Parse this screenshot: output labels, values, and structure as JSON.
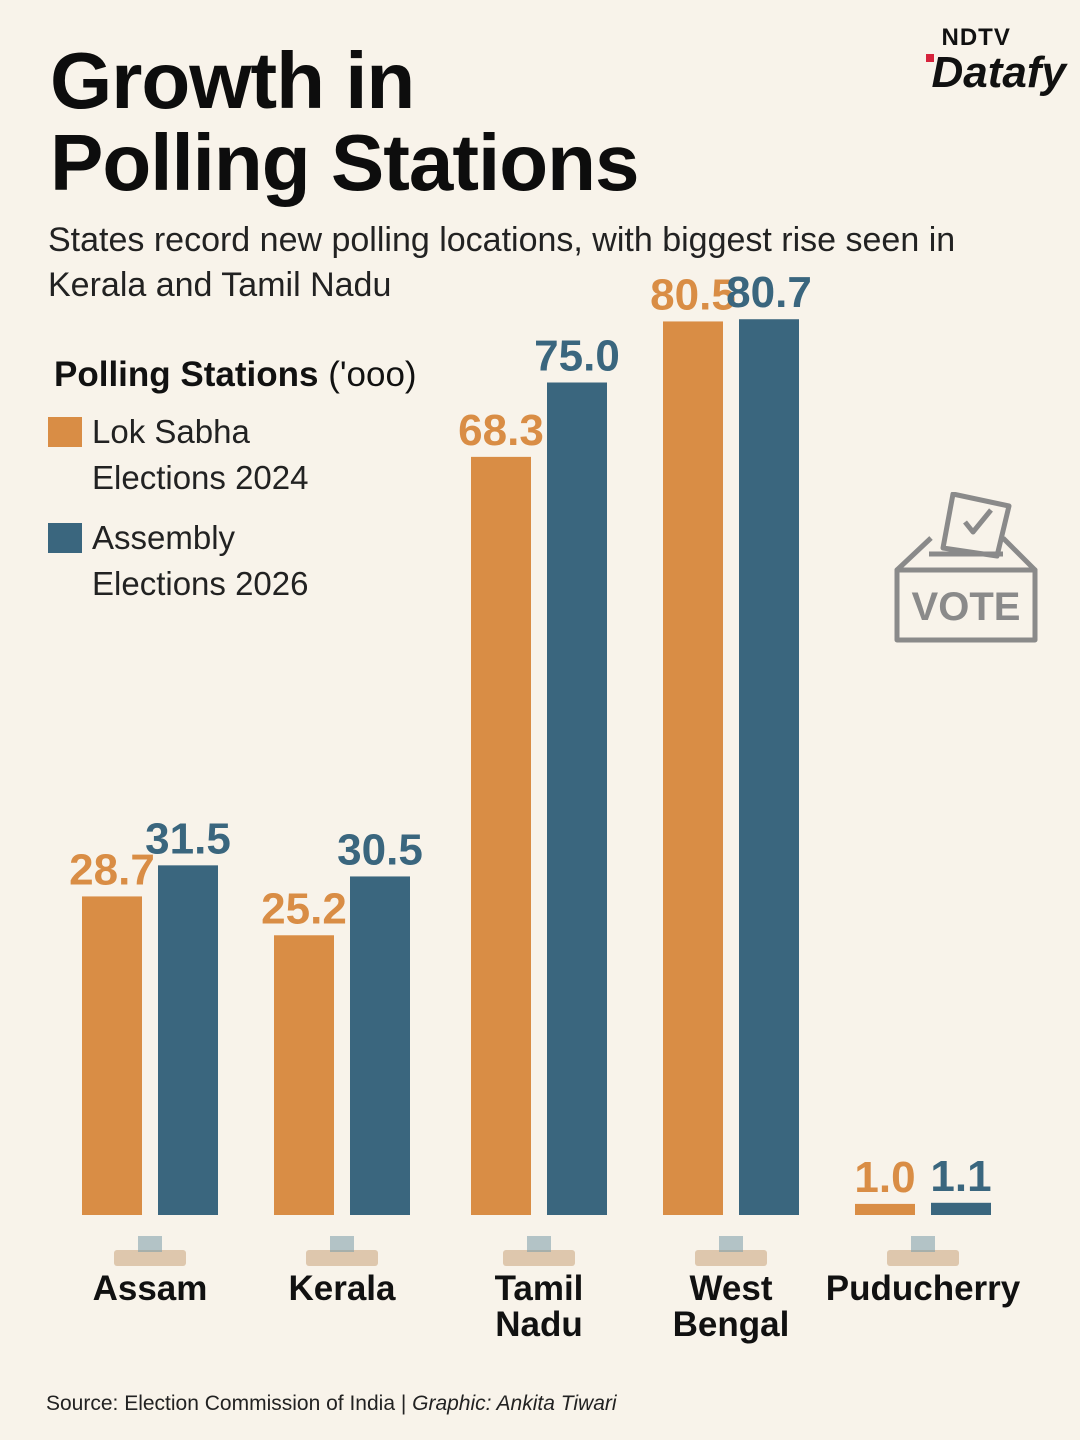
{
  "title_lines": [
    "Growth in",
    "Polling Stations"
  ],
  "subtitle": "States record new polling locations, with biggest rise seen in Kerala and Tamil Nadu",
  "brand": {
    "top": "NDTV",
    "main": "Datafy"
  },
  "ballot_text": "VOTE",
  "footer": {
    "source": "Source: Election Commission of India | ",
    "credit": "Graphic: Ankita Tiwari"
  },
  "colors": {
    "lok_sabha": "#d98d45",
    "assembly": "#3a667e",
    "background": "#f8f3ea"
  },
  "chart_data": {
    "type": "bar",
    "title": "Polling Stations",
    "unit": "('ooo)",
    "categories": [
      [
        "Assam"
      ],
      [
        "Kerala"
      ],
      [
        "Tamil",
        "Nadu"
      ],
      [
        "West",
        "Bengal"
      ],
      [
        "Puducherry"
      ]
    ],
    "series": [
      {
        "name": "Lok Sabha Elections 2024",
        "values": [
          28.7,
          25.2,
          68.3,
          80.5,
          1.0
        ]
      },
      {
        "name": "Assembly Elections 2026",
        "values": [
          31.5,
          30.5,
          75.0,
          80.7,
          1.1
        ]
      }
    ],
    "value_labels": [
      [
        "28.7",
        "25.2",
        "68.3",
        "80.5",
        "1.0"
      ],
      [
        "31.5",
        "30.5",
        "75.0",
        "80.7",
        "1.1"
      ]
    ],
    "ylim": [
      0,
      100
    ],
    "xlabel": "",
    "ylabel": ""
  }
}
